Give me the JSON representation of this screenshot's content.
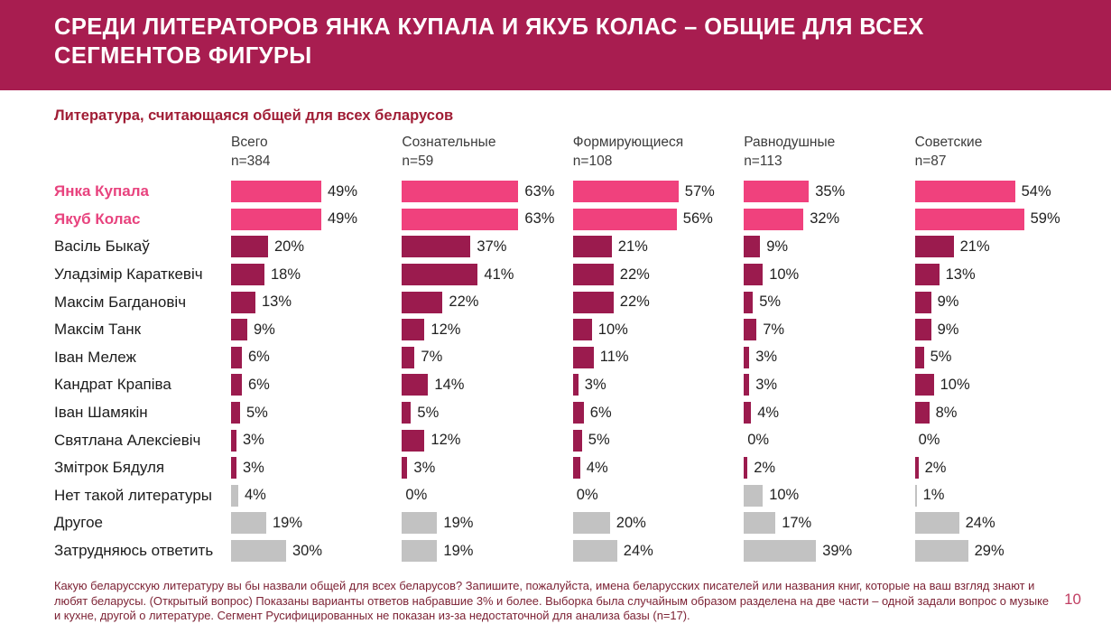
{
  "slide": {
    "title": "СРЕДИ ЛИТЕРАТОРОВ ЯНКА КУПАЛА И ЯКУБ КОЛАС – ОБЩИЕ ДЛЯ ВСЕХ СЕГМЕНТОВ ФИГУРЫ",
    "subtitle": "Литература, считающаяся общей для всех беларусов",
    "page_number": "10",
    "footnote": "Какую беларусскую литературу вы бы назвали общей для всех беларусов? Запишите, пожалуйста, имена беларусских писателей или названия книг, которые на ваш взгляд знают и любят беларусы. (Открытый вопрос) Показаны варианты ответов набравшие 3% и более. Выборка была случайным образом разделена на две части – одной задали вопрос о музыке и кухне, другой о литературе. Сегмент Русифицированных не показан из-за недостаточной для анализа базы (n=17)."
  },
  "colors": {
    "brand": "#A81D50",
    "highlight_bar": "#F0417D",
    "highlight_label": "#E8437E",
    "normal_bar": "#9B1B4E",
    "muted_bar": "#C2C2C2",
    "subtitle_text": "#A01D35",
    "footnote_text": "#7D2335",
    "page_number_text": "#C13E62"
  },
  "chart_data": {
    "type": "bar",
    "orientation": "horizontal",
    "unit": "%",
    "value_suffix": "%",
    "title": "Литература, считающаяся общей для всех беларусов",
    "legend": "none",
    "axis": {
      "min": 0,
      "max": 100,
      "gridlines": false
    },
    "columns": [
      {
        "label": "Всего",
        "n": "n=384"
      },
      {
        "label": "Сознательные",
        "n": "n=59"
      },
      {
        "label": "Формирующиеся",
        "n": "n=108"
      },
      {
        "label": "Равнодушные",
        "n": "n=113"
      },
      {
        "label": "Советские",
        "n": "n=87"
      }
    ],
    "rows": [
      {
        "label": "Янка Купала",
        "style": "highlight",
        "values": [
          49,
          63,
          57,
          35,
          54
        ]
      },
      {
        "label": "Якуб Колас",
        "style": "highlight",
        "values": [
          49,
          63,
          56,
          32,
          59
        ]
      },
      {
        "label": "Васіль Быкаў",
        "style": "normal",
        "values": [
          20,
          37,
          21,
          9,
          21
        ]
      },
      {
        "label": "Уладзімір Караткевіч",
        "style": "normal",
        "values": [
          18,
          41,
          22,
          10,
          13
        ]
      },
      {
        "label": "Максім Багдановіч",
        "style": "normal",
        "values": [
          13,
          22,
          22,
          5,
          9
        ]
      },
      {
        "label": "Максім Танк",
        "style": "normal",
        "values": [
          9,
          12,
          10,
          7,
          9
        ]
      },
      {
        "label": "Іван Мележ",
        "style": "normal",
        "values": [
          6,
          7,
          11,
          3,
          5
        ]
      },
      {
        "label": "Кандрат Крапіва",
        "style": "normal",
        "values": [
          6,
          14,
          3,
          3,
          10
        ]
      },
      {
        "label": "Іван Шамякін",
        "style": "normal",
        "values": [
          5,
          5,
          6,
          4,
          8
        ]
      },
      {
        "label": "Святлана Алексіевіч",
        "style": "normal",
        "values": [
          3,
          12,
          5,
          0,
          0
        ]
      },
      {
        "label": "Змітрок Бядуля",
        "style": "normal",
        "values": [
          3,
          3,
          4,
          2,
          2
        ]
      },
      {
        "label": "Нет такой литературы",
        "style": "muted",
        "values": [
          4,
          0,
          0,
          10,
          1
        ]
      },
      {
        "label": "Другое",
        "style": "muted",
        "values": [
          19,
          19,
          20,
          17,
          24
        ]
      },
      {
        "label": "Затрудняюсь ответить",
        "style": "muted",
        "values": [
          30,
          19,
          24,
          39,
          29
        ]
      }
    ]
  }
}
